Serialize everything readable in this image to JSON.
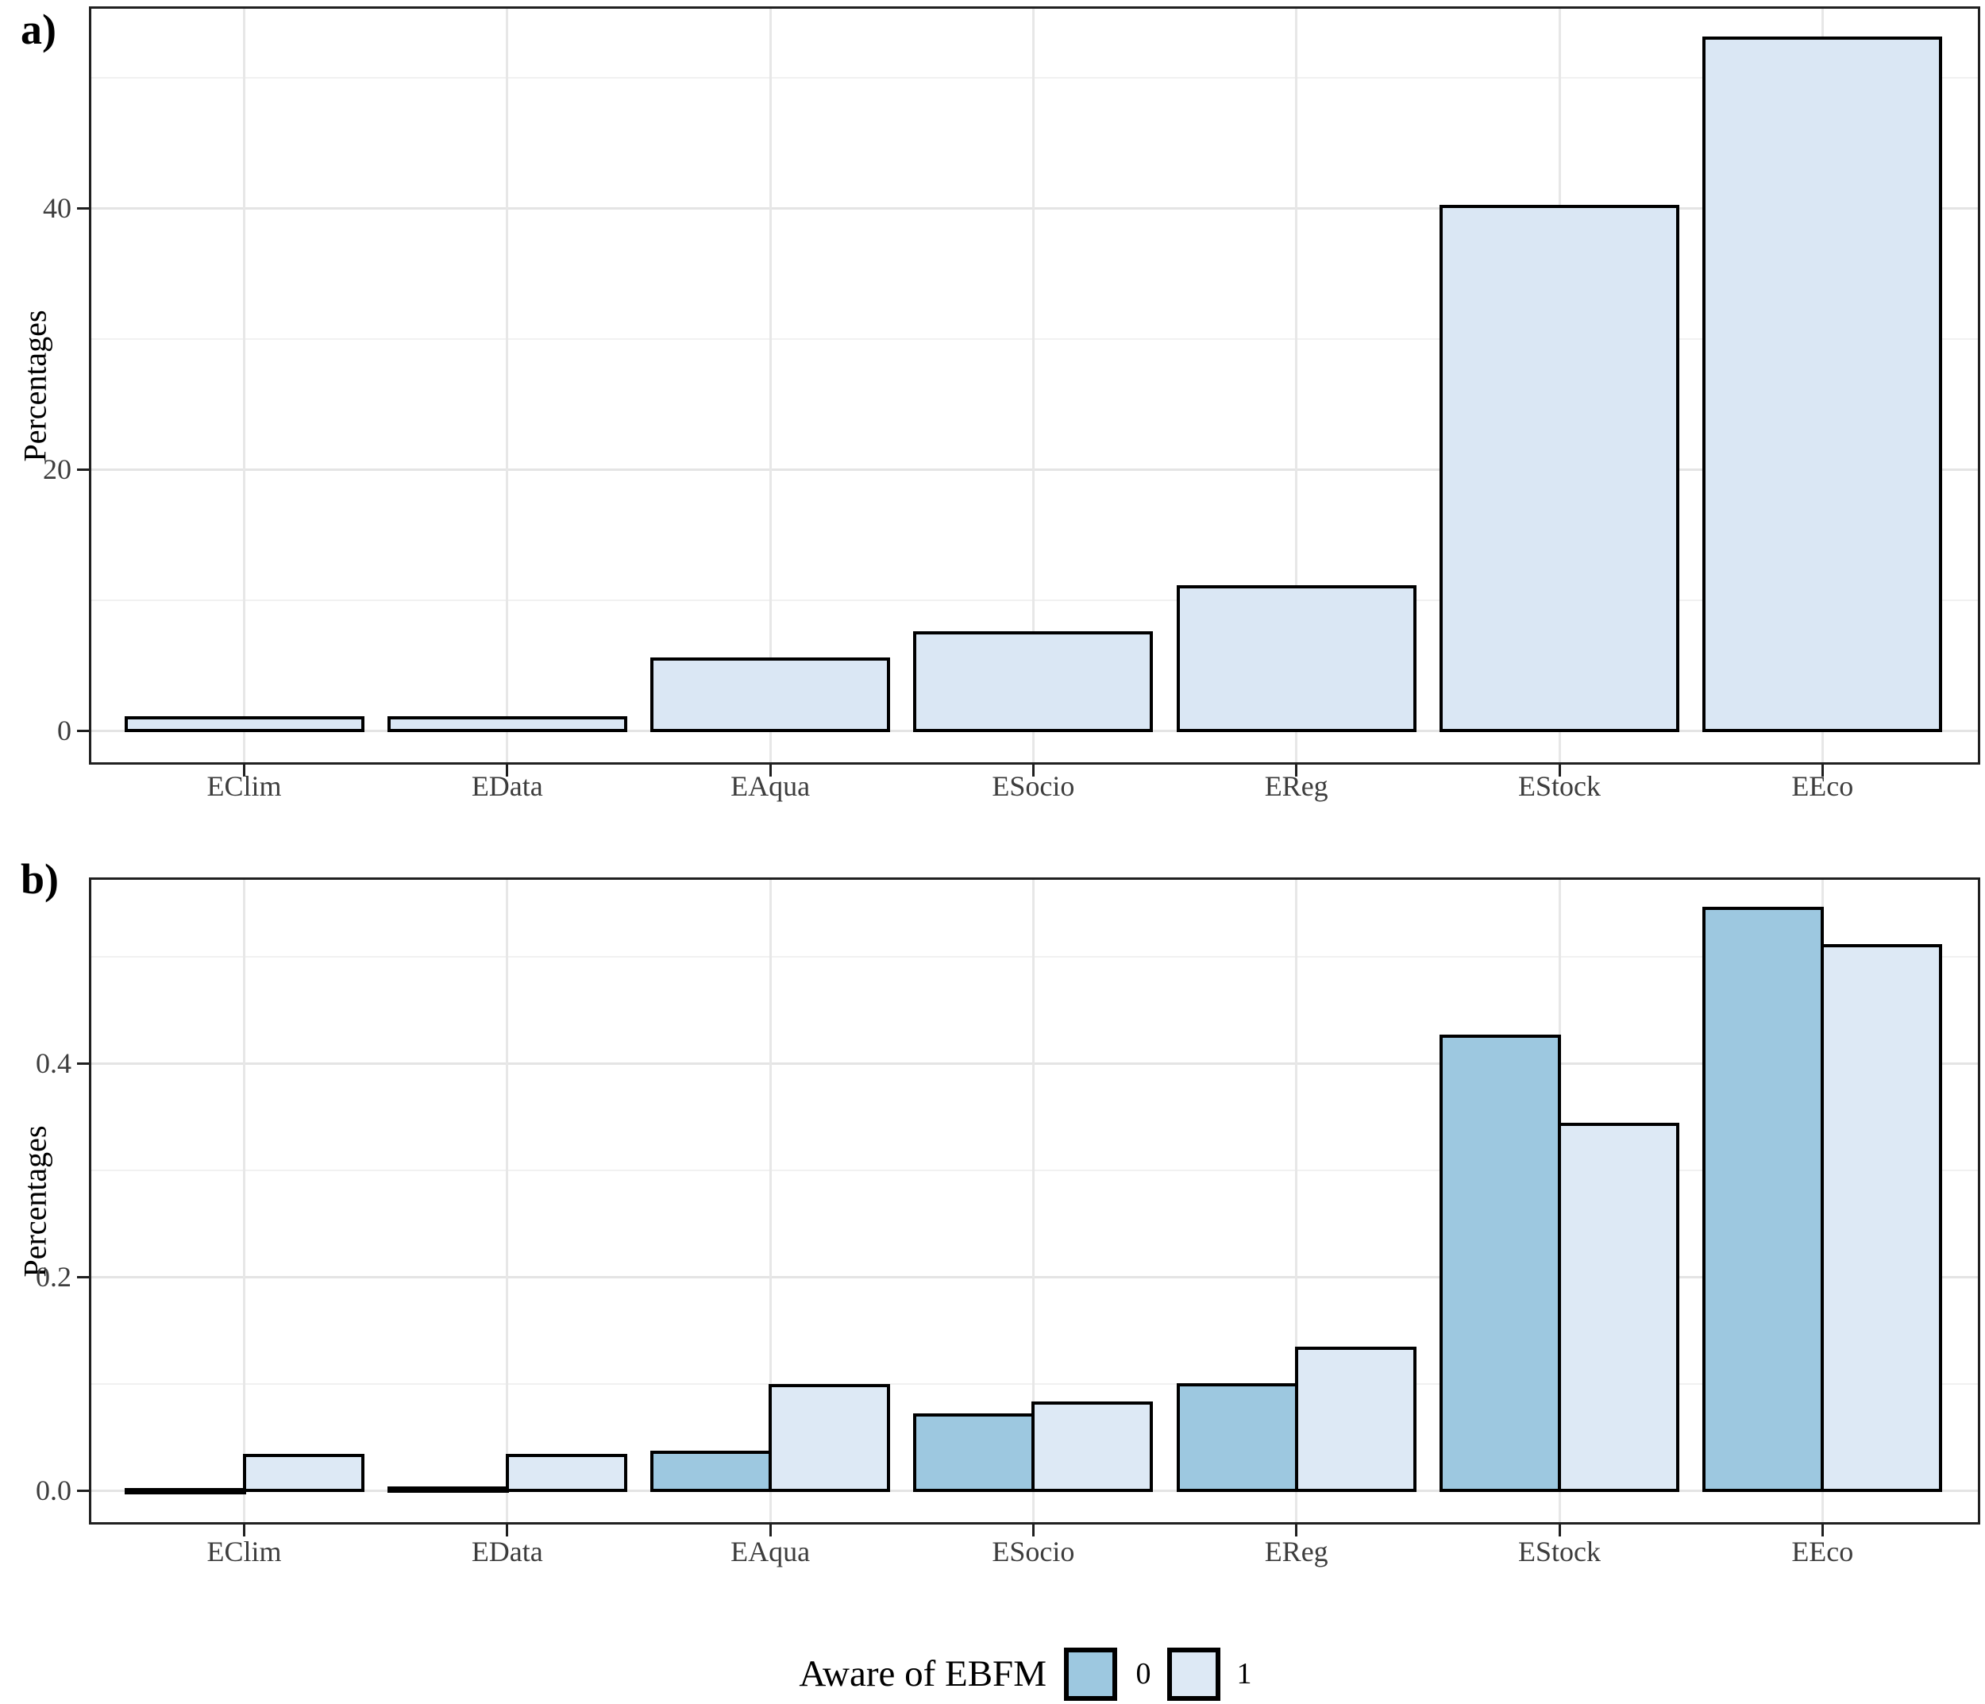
{
  "figure": {
    "background": "#FFFFFF",
    "legend": {
      "title": "Aware of EBFM",
      "entries": [
        {
          "label": "0",
          "color": "#9DC8E0"
        },
        {
          "label": "1",
          "color": "#DDE9F5"
        }
      ],
      "position": "bottom"
    },
    "styles": {
      "grid_major": "#E4E4E4",
      "grid_minor": "#F1F1F1",
      "panel_border": "#202020",
      "axis_text_color": "#3D3D3D",
      "bar_outline": "#000000"
    }
  },
  "chart_data": [
    {
      "panel": "a",
      "type": "bar",
      "title": "a)",
      "xlabel": "",
      "ylabel": "Percentages",
      "categories": [
        "EClim",
        "EData",
        "EAqua",
        "ESocio",
        "EReg",
        "EStock",
        "EEco"
      ],
      "values": [
        1.0,
        1.0,
        5.5,
        7.5,
        11.0,
        40.1,
        53.0
      ],
      "bar_fill": "#DAE7F4",
      "ylim": [
        -2.6,
        55.4
      ],
      "yticks": [
        0,
        20,
        40
      ],
      "ytick_labels": [
        "0",
        "20",
        "40"
      ],
      "yticks_minor": [
        10,
        30,
        50
      ],
      "grid": true,
      "legend_position": "none"
    },
    {
      "panel": "b",
      "type": "bar",
      "grouped": true,
      "title": "b)",
      "xlabel": "",
      "ylabel": "Percentages",
      "categories": [
        "EClim",
        "EData",
        "EAqua",
        "ESocio",
        "EReg",
        "EStock",
        "EEco"
      ],
      "series": [
        {
          "name": "0",
          "color": "#9DC8E0",
          "values": [
            0.001,
            0.002,
            0.036,
            0.071,
            0.099,
            0.425,
            0.545
          ]
        },
        {
          "name": "1",
          "color": "#DDE9F5",
          "values": [
            0.033,
            0.033,
            0.098,
            0.082,
            0.133,
            0.343,
            0.51
          ]
        }
      ],
      "ylim": [
        -0.032,
        0.575
      ],
      "yticks": [
        0,
        0.2,
        0.4
      ],
      "ytick_labels": [
        "0.0",
        "0.2",
        "0.4"
      ],
      "yticks_minor": [
        0.1,
        0.3,
        0.5
      ],
      "grid": true,
      "legend_position": "bottom"
    }
  ]
}
